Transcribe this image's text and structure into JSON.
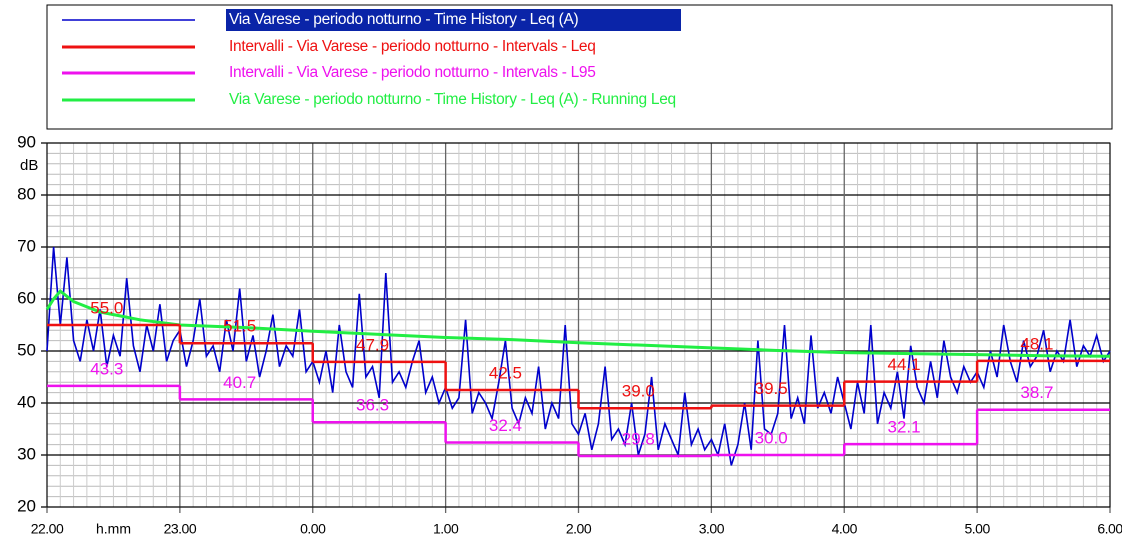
{
  "chart_data": {
    "type": "line",
    "ylabel": "dB",
    "xlabel": "h.mm",
    "xlim": [
      22,
      30
    ],
    "xticks": [
      {
        "value": 22,
        "label": "22.00"
      },
      {
        "value": 23,
        "label": "23.00"
      },
      {
        "value": 24,
        "label": "0.00"
      },
      {
        "value": 25,
        "label": "1.00"
      },
      {
        "value": 26,
        "label": "2.00"
      },
      {
        "value": 27,
        "label": "3.00"
      },
      {
        "value": 28,
        "label": "4.00"
      },
      {
        "value": 29,
        "label": "5.00"
      },
      {
        "value": 30,
        "label": "6.00"
      }
    ],
    "ylim": [
      20,
      90
    ],
    "yticks": [
      20,
      30,
      40,
      50,
      60,
      70,
      80,
      90
    ],
    "grid": true,
    "legend": "top",
    "series": [
      {
        "name": "Via Varese - periodo notturno - Time History - Leq (A)",
        "color": "#0000cc",
        "x": [
          22,
          22.05,
          22.1,
          22.15,
          22.2,
          22.25,
          22.3,
          22.35,
          22.4,
          22.45,
          22.5,
          22.55,
          22.6,
          22.65,
          22.7,
          22.75,
          22.8,
          22.85,
          22.9,
          22.95,
          23,
          23.05,
          23.1,
          23.15,
          23.2,
          23.25,
          23.3,
          23.35,
          23.4,
          23.45,
          23.5,
          23.55,
          23.6,
          23.65,
          23.7,
          23.75,
          23.8,
          23.85,
          23.9,
          23.95,
          24,
          24.05,
          24.1,
          24.15,
          24.2,
          24.25,
          24.3,
          24.35,
          24.4,
          24.45,
          24.5,
          24.55,
          24.6,
          24.65,
          24.7,
          24.75,
          24.8,
          24.85,
          24.9,
          24.95,
          25,
          25.05,
          25.1,
          25.15,
          25.2,
          25.25,
          25.3,
          25.35,
          25.4,
          25.45,
          25.5,
          25.55,
          25.6,
          25.65,
          25.7,
          25.75,
          25.8,
          25.85,
          25.9,
          25.95,
          26,
          26.05,
          26.1,
          26.15,
          26.2,
          26.25,
          26.3,
          26.35,
          26.4,
          26.45,
          26.5,
          26.55,
          26.6,
          26.65,
          26.7,
          26.75,
          26.8,
          26.85,
          26.9,
          26.95,
          27,
          27.05,
          27.1,
          27.15,
          27.2,
          27.25,
          27.3,
          27.35,
          27.4,
          27.45,
          27.5,
          27.55,
          27.6,
          27.65,
          27.7,
          27.75,
          27.8,
          27.85,
          27.9,
          27.95,
          28,
          28.05,
          28.1,
          28.15,
          28.2,
          28.25,
          28.3,
          28.35,
          28.4,
          28.45,
          28.5,
          28.55,
          28.6,
          28.65,
          28.7,
          28.75,
          28.8,
          28.85,
          28.9,
          28.95,
          29,
          29.05,
          29.1,
          29.15,
          29.2,
          29.25,
          29.3,
          29.35,
          29.4,
          29.45,
          29.5,
          29.55,
          29.6,
          29.65,
          29.7,
          29.75,
          29.8,
          29.85,
          29.9,
          29.95,
          30
        ],
        "values": [
          50,
          70,
          55,
          68,
          52,
          48,
          56,
          50,
          58,
          47,
          53,
          49,
          64,
          51,
          46,
          55,
          50,
          59,
          48,
          52,
          54,
          47,
          52,
          60,
          49,
          51,
          46,
          56,
          50,
          62,
          48,
          53,
          45,
          50,
          57,
          47,
          51,
          49,
          58,
          46,
          48,
          44,
          50,
          42,
          55,
          46,
          43,
          61,
          45,
          47,
          41,
          65,
          44,
          46,
          43,
          48,
          52,
          42,
          45,
          40,
          43,
          39,
          41,
          56,
          38,
          42,
          40,
          37,
          44,
          52,
          39,
          36,
          41,
          38,
          47,
          35,
          40,
          37,
          55,
          36,
          34,
          38,
          31,
          36,
          47,
          33,
          35,
          32,
          40,
          30,
          34,
          45,
          31,
          36,
          33,
          30,
          42,
          32,
          35,
          31,
          33,
          30,
          36,
          28,
          32,
          40,
          31,
          52,
          35,
          34,
          38,
          55,
          37,
          41,
          36,
          53,
          39,
          42,
          38,
          45,
          40,
          35,
          44,
          38,
          55,
          36,
          42,
          39,
          46,
          37,
          51,
          43,
          40,
          48,
          41,
          52,
          45,
          42,
          47,
          44,
          46,
          43,
          50,
          45,
          55,
          48,
          44,
          52,
          47,
          49,
          54,
          46,
          50,
          48,
          56,
          47,
          51,
          49,
          53,
          48,
          50
        ]
      },
      {
        "name": "Intervalli - Via Varese - periodo notturno - Intervals - Leq",
        "color": "#ee1111",
        "step": true,
        "x": [
          22,
          23,
          24,
          25,
          26,
          27,
          28,
          29
        ],
        "values": [
          55.0,
          51.5,
          47.9,
          42.5,
          39.0,
          39.5,
          44.1,
          48.1
        ],
        "value_labels": [
          "55.0",
          "51.5",
          "47.9",
          "42.5",
          "39.0",
          "39.5",
          "44.1",
          "48.1"
        ]
      },
      {
        "name": "Intervalli - Via Varese - periodo notturno - Intervals - L95",
        "color": "#ee11ee",
        "step": true,
        "x": [
          22,
          23,
          24,
          25,
          26,
          27,
          28,
          29
        ],
        "values": [
          43.3,
          40.7,
          36.3,
          32.4,
          29.8,
          30.0,
          32.1,
          38.7
        ],
        "value_labels": [
          "43.3",
          "40.7",
          "36.3",
          "32.4",
          "29.8",
          "30.0",
          "32.1",
          "38.7"
        ]
      },
      {
        "name": "Via Varese - periodo notturno - Time History - Leq (A) - Running Leq",
        "color": "#22ee44",
        "x": [
          22,
          22.05,
          22.1,
          22.2,
          22.4,
          22.7,
          23,
          23.5,
          24,
          24.5,
          25,
          25.5,
          26,
          26.5,
          27,
          27.5,
          28,
          28.5,
          29,
          29.5,
          30
        ],
        "values": [
          58,
          60,
          61.5,
          59.5,
          57.5,
          56,
          55,
          54.5,
          53.8,
          53.2,
          52.6,
          52.2,
          51.6,
          51.1,
          50.6,
          50.1,
          49.7,
          49.5,
          49.3,
          49.1,
          49
        ]
      }
    ]
  }
}
